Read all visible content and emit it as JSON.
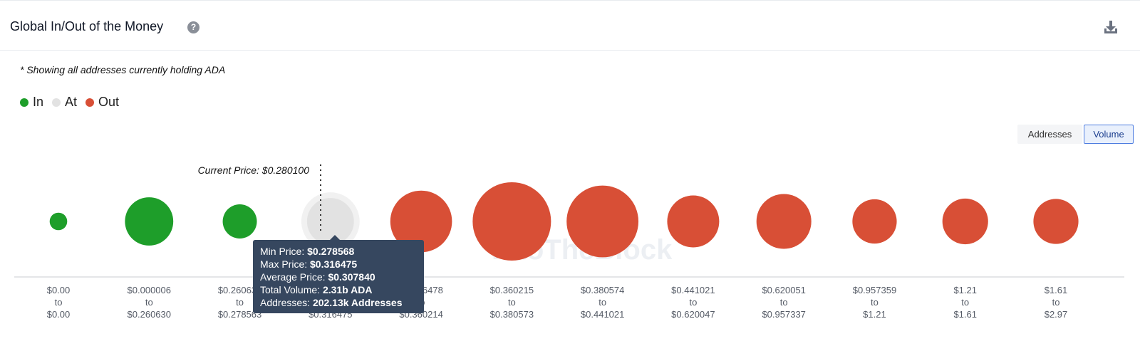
{
  "header": {
    "title": "Global In/Out of the Money",
    "help_glyph": "?",
    "help_icon": "question-circle-icon",
    "download_icon": "download-icon"
  },
  "note": "* Showing all addresses currently holding ADA",
  "legend": [
    {
      "label": "In",
      "color": "#1e9e2a"
    },
    {
      "label": "At",
      "color": "#e2e2e2"
    },
    {
      "label": "Out",
      "color": "#d84f36"
    }
  ],
  "toggles": {
    "addresses_label": "Addresses",
    "volume_label": "Volume",
    "active": "Volume"
  },
  "watermark": "IntoTheBlock",
  "current_price_label": "Current Price: $0.280100",
  "tooltip": {
    "min_label": "Min Price:",
    "min_value": "$0.278568",
    "max_label": "Max Price:",
    "max_value": "$0.316475",
    "avg_label": "Average Price:",
    "avg_value": "$0.307840",
    "vol_label": "Total Volume:",
    "vol_value": "2.31b ADA",
    "addr_label": "Addresses:",
    "addr_value": "202.13k Addresses"
  },
  "chart_data": {
    "type": "bubble",
    "size_metric": "Volume",
    "categories": [
      {
        "from": "$0.00",
        "to": "$0.00",
        "status": "In",
        "size": 0.05
      },
      {
        "from": "$0.000006",
        "to": "$0.260630",
        "status": "In",
        "size": 0.38
      },
      {
        "from": "$0.260631",
        "to": "$0.278563",
        "status": "In",
        "size": 0.19
      },
      {
        "from": "$0.278568",
        "to": "$0.316475",
        "status": "At",
        "size": 0.45
      },
      {
        "from": "$0.316478",
        "to": "$0.360214",
        "status": "Out",
        "size": 0.62
      },
      {
        "from": "$0.360215",
        "to": "$0.380573",
        "status": "Out",
        "size": 1.0
      },
      {
        "from": "$0.380574",
        "to": "$0.441021",
        "status": "Out",
        "size": 0.84
      },
      {
        "from": "$0.441021",
        "to": "$0.620047",
        "status": "Out",
        "size": 0.44
      },
      {
        "from": "$0.620051",
        "to": "$0.957337",
        "status": "Out",
        "size": 0.49
      },
      {
        "from": "$0.957359",
        "to": "$1.21",
        "status": "Out",
        "size": 0.32
      },
      {
        "from": "$1.21",
        "to": "$1.61",
        "status": "Out",
        "size": 0.34
      },
      {
        "from": "$1.61",
        "to": "$2.97",
        "status": "Out",
        "size": 0.33
      }
    ],
    "tick_joiner": "to",
    "current_price": 0.2801
  }
}
